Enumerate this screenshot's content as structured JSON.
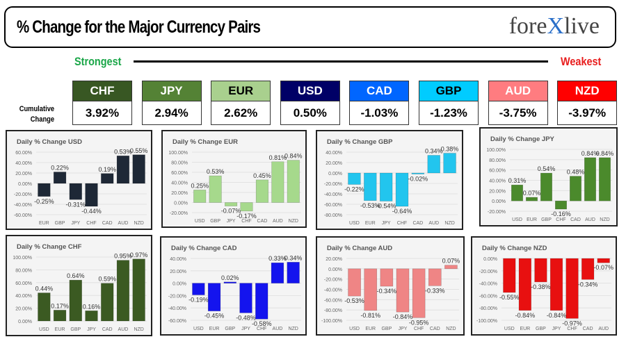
{
  "header": {
    "title": "% Change for the Major Currency Pairs",
    "logo_left": "fore",
    "logo_x": "X",
    "logo_right": "live"
  },
  "scale": {
    "strongest": "Strongest",
    "weakest": "Weakest",
    "row_label": "Cumulative Change"
  },
  "ranking": [
    {
      "currency": "CHF",
      "value": "3.92%",
      "color": "#385723",
      "text_color": "#ffffff"
    },
    {
      "currency": "JPY",
      "value": "2.94%",
      "color": "#548235",
      "text_color": "#ffffff"
    },
    {
      "currency": "EUR",
      "value": "2.62%",
      "color": "#a9d08e",
      "text_color": "#000000"
    },
    {
      "currency": "USD",
      "value": "0.50%",
      "color": "#000066",
      "text_color": "#ffffff"
    },
    {
      "currency": "CAD",
      "value": "-1.03%",
      "color": "#0066ff",
      "text_color": "#ffffff"
    },
    {
      "currency": "GBP",
      "value": "-1.23%",
      "color": "#00ccff",
      "text_color": "#000000"
    },
    {
      "currency": "AUD",
      "value": "-3.75%",
      "color": "#ff7c80",
      "text_color": "#ffffff"
    },
    {
      "currency": "NZD",
      "value": "-3.97%",
      "color": "#ff0000",
      "text_color": "#ffffff"
    }
  ],
  "chart_data": [
    {
      "type": "bar",
      "title": "Daily % Change USD",
      "color": "#1e2836",
      "categories": [
        "EUR",
        "GBP",
        "JPY",
        "CHF",
        "CAD",
        "AUD",
        "NZD"
      ],
      "values": [
        -0.25,
        0.22,
        -0.31,
        -0.44,
        0.19,
        0.53,
        0.55
      ],
      "ylim": [
        -0.6,
        0.6
      ],
      "ytick_step": 0.2,
      "grid": true
    },
    {
      "type": "bar",
      "title": "Daily % Change EUR",
      "color": "#a6d98c",
      "categories": [
        "USD",
        "GBP",
        "JPY",
        "CHF",
        "CAD",
        "AUD",
        "NZD"
      ],
      "values": [
        0.25,
        0.53,
        -0.07,
        -0.17,
        0.45,
        0.81,
        0.84
      ],
      "ylim": [
        -0.2,
        1.0
      ],
      "ytick_step": 0.2,
      "grid": true
    },
    {
      "type": "bar",
      "title": "Daily % Change GBP",
      "color": "#22c5ee",
      "categories": [
        "USD",
        "EUR",
        "JPY",
        "CHF",
        "CAD",
        "AUD",
        "NZD"
      ],
      "values": [
        -0.22,
        -0.53,
        -0.54,
        -0.64,
        -0.02,
        0.34,
        0.38
      ],
      "ylim": [
        -0.8,
        0.4
      ],
      "ytick_step": 0.2,
      "grid": true
    },
    {
      "type": "bar",
      "title": "Daily % Change JPY",
      "color": "#4b8a2c",
      "categories": [
        "USD",
        "EUR",
        "GBP",
        "CHF",
        "CAD",
        "AUD",
        "NZD"
      ],
      "values": [
        0.31,
        0.07,
        0.54,
        -0.16,
        0.48,
        0.84,
        0.84
      ],
      "ylim": [
        -0.2,
        1.0
      ],
      "ytick_step": 0.2,
      "grid": true
    },
    {
      "type": "bar",
      "title": "Daily % Change CHF",
      "color": "#3b5a22",
      "categories": [
        "USD",
        "EUR",
        "GBP",
        "JPY",
        "CAD",
        "AUD",
        "NZD"
      ],
      "values": [
        0.44,
        0.17,
        0.64,
        0.16,
        0.59,
        0.95,
        0.97
      ],
      "ylim": [
        0.0,
        1.0
      ],
      "ytick_step": 0.2,
      "grid": true
    },
    {
      "type": "bar",
      "title": "Daily % Change CAD",
      "color": "#1414ee",
      "categories": [
        "USD",
        "EUR",
        "GBP",
        "JPY",
        "CHF",
        "AUD",
        "NZD"
      ],
      "values": [
        -0.19,
        -0.45,
        0.02,
        -0.48,
        -0.58,
        0.33,
        0.34
      ],
      "ylim": [
        -0.6,
        0.4
      ],
      "ytick_step": 0.2,
      "grid": true
    },
    {
      "type": "bar",
      "title": "Daily % Change AUD",
      "color": "#ef8585",
      "categories": [
        "USD",
        "EUR",
        "GBP",
        "JPY",
        "CHF",
        "CAD",
        "NZD"
      ],
      "values": [
        -0.53,
        -0.81,
        -0.34,
        -0.84,
        -0.95,
        -0.33,
        0.07
      ],
      "ylim": [
        -1.0,
        0.2
      ],
      "ytick_step": 0.2,
      "grid": true
    },
    {
      "type": "bar",
      "title": "Daily % Change NZD",
      "color": "#e81010",
      "categories": [
        "USD",
        "EUR",
        "GBP",
        "JPY",
        "CHF",
        "CAD",
        "AUD"
      ],
      "values": [
        -0.55,
        -0.84,
        -0.38,
        -0.84,
        -0.97,
        -0.34,
        -0.07
      ],
      "ylim": [
        -1.0,
        0.0
      ],
      "ytick_step": 0.2,
      "grid": true
    }
  ]
}
